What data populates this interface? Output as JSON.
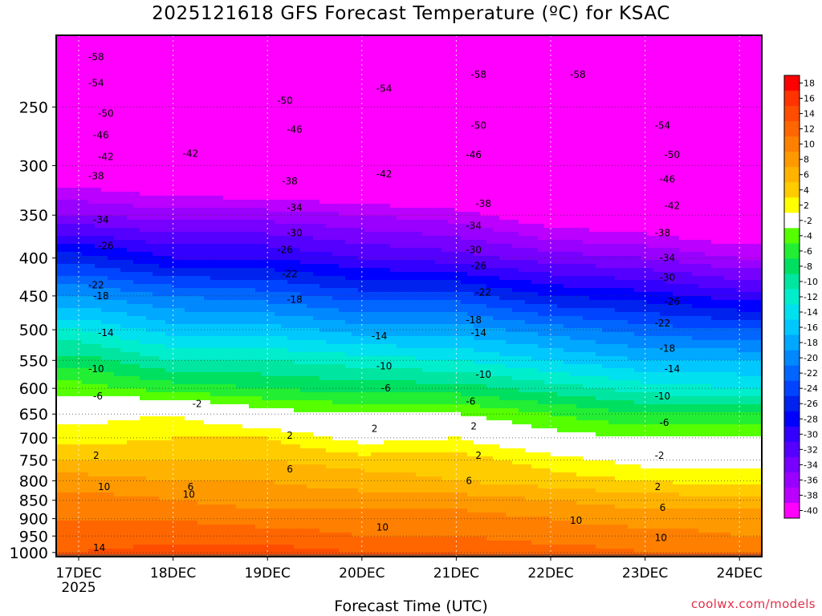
{
  "chart_data": {
    "type": "heatmap",
    "title": "2025121618 GFS Forecast Temperature (ºC) for KSAC",
    "xlabel": "Forecast Time (UTC)",
    "ylabel": "",
    "credit": "coolwx.com/models",
    "x_ticks": [
      "17DEC",
      "18DEC",
      "19DEC",
      "20DEC",
      "21DEC",
      "22DEC",
      "23DEC",
      "24DEC"
    ],
    "x_year_label": "2025",
    "y_ticks": [
      250,
      300,
      350,
      400,
      450,
      500,
      550,
      600,
      650,
      700,
      750,
      800,
      850,
      900,
      950,
      1000
    ],
    "ylim": [
      200,
      1013
    ],
    "y_scale": "log-pressure (inverted)",
    "grid": "dotted white at each date and pressure level",
    "colorbar_levels": [
      18,
      16,
      14,
      12,
      10,
      8,
      6,
      4,
      2,
      -2,
      -4,
      -6,
      -8,
      -10,
      -12,
      -14,
      -16,
      -18,
      -20,
      -22,
      -24,
      -26,
      -28,
      -30,
      -32,
      -34,
      -36,
      -38,
      -40
    ],
    "colorbar_colors": [
      "#ff0000",
      "#ff3300",
      "#ff4d00",
      "#ff6600",
      "#ff8000",
      "#ff9900",
      "#ffb300",
      "#ffcc00",
      "#ffff00",
      "#ffffff",
      "#55ff00",
      "#22ee33",
      "#00e060",
      "#00e6a0",
      "#00eecc",
      "#00e0ee",
      "#00c8ff",
      "#00a8ff",
      "#0088ff",
      "#0066ff",
      "#0044ff",
      "#0022ee",
      "#0000ff",
      "#3300ff",
      "#5500ff",
      "#7700ff",
      "#9900ff",
      "#bb00ff",
      "#ff00ff"
    ],
    "temperature_profile": {
      "pressures": [
        210,
        250,
        300,
        350,
        400,
        450,
        500,
        550,
        600,
        650,
        700,
        750,
        800,
        850,
        900,
        950,
        1000
      ],
      "times": [
        "17DEC",
        "18DEC",
        "19DEC",
        "20DEC",
        "21DEC",
        "22DEC",
        "23DEC",
        "24DEC"
      ],
      "values": [
        [
          -57,
          -57,
          -58,
          -58,
          -58,
          -58,
          -58,
          -58
        ],
        [
          -50,
          -51,
          -50,
          -51,
          -52,
          -53,
          -54,
          -56
        ],
        [
          -41,
          -43,
          -44,
          -45,
          -46,
          -48,
          -50,
          -51
        ],
        [
          -34,
          -35,
          -35,
          -36,
          -37,
          -40,
          -41,
          -43
        ],
        [
          -25,
          -28,
          -28,
          -30,
          -31,
          -33,
          -34,
          -36
        ],
        [
          -18,
          -20,
          -21,
          -23,
          -23,
          -26,
          -27,
          -29
        ],
        [
          -12,
          -15,
          -15,
          -17,
          -17,
          -19,
          -21,
          -22
        ],
        [
          -7,
          -10,
          -10,
          -11,
          -12,
          -14,
          -16,
          -16
        ],
        [
          -3,
          -5,
          -6,
          -7,
          -7,
          -9,
          -11,
          -12
        ],
        [
          1,
          2,
          -1,
          -2,
          -2,
          -4,
          -6,
          -6
        ],
        [
          3,
          4,
          4,
          1,
          2,
          -1,
          -2,
          -2
        ],
        [
          6,
          6,
          6,
          5,
          5,
          3,
          1,
          1
        ],
        [
          9,
          8,
          8,
          7,
          6,
          5,
          4,
          3
        ],
        [
          11,
          10,
          9,
          9,
          9,
          8,
          7,
          7
        ],
        [
          12,
          12,
          11,
          11,
          11,
          10,
          9,
          9
        ],
        [
          13,
          13,
          13,
          12,
          12,
          11,
          11,
          10
        ],
        [
          14,
          15,
          15,
          14,
          14,
          13,
          12,
          12
        ]
      ]
    },
    "contour_labels": [
      {
        "text": "-58",
        "t": "17DEC",
        "p": 214
      },
      {
        "text": "-58",
        "t": "21DEC",
        "p": 226
      },
      {
        "text": "-58",
        "t": "22DEC",
        "p": 226
      },
      {
        "text": "-54",
        "t": "17DEC",
        "p": 232
      },
      {
        "text": "-54",
        "t": "20DEC",
        "p": 236
      },
      {
        "text": "-50",
        "t": "17DEC",
        "p": 255
      },
      {
        "text": "-50",
        "t": "19DEC",
        "p": 245
      },
      {
        "text": "-50",
        "t": "21DEC",
        "p": 265
      },
      {
        "text": "-50",
        "t": "23DEC",
        "p": 290
      },
      {
        "text": "-54",
        "t": "23DEC",
        "p": 265
      },
      {
        "text": "-46",
        "t": "17DEC",
        "p": 273
      },
      {
        "text": "-46",
        "t": "19DEC",
        "p": 268
      },
      {
        "text": "-46",
        "t": "21DEC",
        "p": 290
      },
      {
        "text": "-46",
        "t": "23DEC",
        "p": 313
      },
      {
        "text": "-42",
        "t": "17DEC",
        "p": 292
      },
      {
        "text": "-42",
        "t": "18DEC",
        "p": 289
      },
      {
        "text": "-42",
        "t": "20DEC",
        "p": 308
      },
      {
        "text": "-42",
        "t": "23DEC",
        "p": 340
      },
      {
        "text": "-38",
        "t": "17DEC",
        "p": 310
      },
      {
        "text": "-38",
        "t": "19DEC",
        "p": 315
      },
      {
        "text": "-38",
        "t": "21DEC",
        "p": 338
      },
      {
        "text": "-38",
        "t": "23DEC",
        "p": 370
      },
      {
        "text": "-34",
        "t": "17DEC",
        "p": 355
      },
      {
        "text": "-34",
        "t": "19DEC",
        "p": 342
      },
      {
        "text": "-34",
        "t": "21DEC",
        "p": 362
      },
      {
        "text": "-34",
        "t": "23DEC",
        "p": 400
      },
      {
        "text": "-30",
        "t": "19DEC",
        "p": 370
      },
      {
        "text": "-30",
        "t": "21DEC",
        "p": 390
      },
      {
        "text": "-30",
        "t": "23DEC",
        "p": 425
      },
      {
        "text": "-26",
        "t": "17DEC",
        "p": 385
      },
      {
        "text": "-26",
        "t": "19DEC",
        "p": 390
      },
      {
        "text": "-26",
        "t": "21DEC",
        "p": 410
      },
      {
        "text": "-26",
        "t": "23DEC",
        "p": 458
      },
      {
        "text": "-22",
        "t": "17DEC",
        "p": 435
      },
      {
        "text": "-22",
        "t": "19DEC",
        "p": 420
      },
      {
        "text": "-22",
        "t": "21DEC",
        "p": 445
      },
      {
        "text": "-22",
        "t": "23DEC",
        "p": 490
      },
      {
        "text": "-18",
        "t": "17DEC",
        "p": 450
      },
      {
        "text": "-18",
        "t": "19DEC",
        "p": 455
      },
      {
        "text": "-18",
        "t": "21DEC",
        "p": 485
      },
      {
        "text": "-18",
        "t": "23DEC",
        "p": 530
      },
      {
        "text": "-14",
        "t": "17DEC",
        "p": 505
      },
      {
        "text": "-14",
        "t": "20DEC",
        "p": 510
      },
      {
        "text": "-14",
        "t": "21DEC",
        "p": 505
      },
      {
        "text": "-14",
        "t": "23DEC",
        "p": 565
      },
      {
        "text": "-10",
        "t": "17DEC",
        "p": 565
      },
      {
        "text": "-10",
        "t": "20DEC",
        "p": 560
      },
      {
        "text": "-10",
        "t": "21DEC",
        "p": 575
      },
      {
        "text": "-10",
        "t": "23DEC",
        "p": 615
      },
      {
        "text": "-6",
        "t": "17DEC",
        "p": 615
      },
      {
        "text": "-6",
        "t": "20DEC",
        "p": 600
      },
      {
        "text": "-6",
        "t": "21DEC",
        "p": 625
      },
      {
        "text": "-6",
        "t": "23DEC",
        "p": 668
      },
      {
        "text": "-2",
        "t": "18DEC",
        "p": 630
      },
      {
        "text": "-2",
        "t": "23DEC",
        "p": 740
      },
      {
        "text": "2",
        "t": "17DEC",
        "p": 740
      },
      {
        "text": "2",
        "t": "19DEC",
        "p": 695
      },
      {
        "text": "2",
        "t": "20DEC",
        "p": 680
      },
      {
        "text": "2",
        "t": "21DEC",
        "p": 675
      },
      {
        "text": "2",
        "t": "21DEC",
        "p": 740
      },
      {
        "text": "2",
        "t": "23DEC",
        "p": 815
      },
      {
        "text": "6",
        "t": "18DEC",
        "p": 815
      },
      {
        "text": "6",
        "t": "19DEC",
        "p": 772
      },
      {
        "text": "6",
        "t": "21DEC",
        "p": 800
      },
      {
        "text": "6",
        "t": "23DEC",
        "p": 870
      },
      {
        "text": "10",
        "t": "17DEC",
        "p": 815
      },
      {
        "text": "10",
        "t": "18DEC",
        "p": 835
      },
      {
        "text": "10",
        "t": "20DEC",
        "p": 925
      },
      {
        "text": "10",
        "t": "22DEC",
        "p": 905
      },
      {
        "text": "10",
        "t": "23DEC",
        "p": 955
      },
      {
        "text": "14",
        "t": "17DEC",
        "p": 985
      }
    ]
  }
}
